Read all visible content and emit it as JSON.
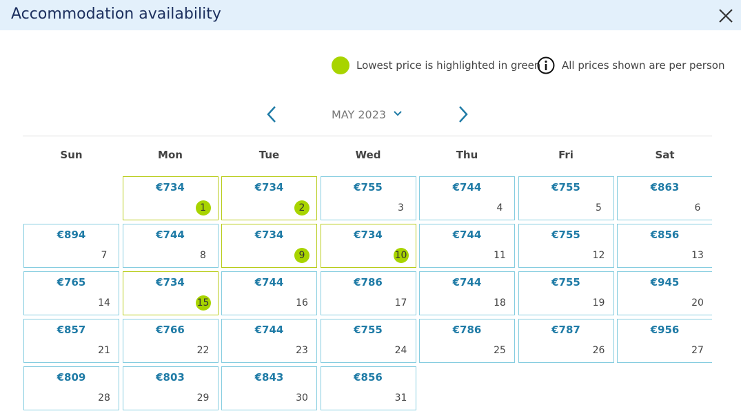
{
  "header": {
    "title": "Accommodation availability"
  },
  "legend": {
    "lowest": "Lowest price is highlighted in green",
    "info": "All prices shown are per person"
  },
  "calendar": {
    "month": "MAY 2023",
    "weekdays": [
      "Sun",
      "Mon",
      "Tue",
      "Wed",
      "Thu",
      "Fri",
      "Sat"
    ],
    "weeks": [
      [
        null,
        {
          "price": "€734",
          "day": 1,
          "lowest": true
        },
        {
          "price": "€734",
          "day": 2,
          "lowest": true
        },
        {
          "price": "€755",
          "day": 3
        },
        {
          "price": "€744",
          "day": 4
        },
        {
          "price": "€755",
          "day": 5
        },
        {
          "price": "€863",
          "day": 6
        }
      ],
      [
        {
          "price": "€894",
          "day": 7
        },
        {
          "price": "€744",
          "day": 8
        },
        {
          "price": "€734",
          "day": 9,
          "lowest": true
        },
        {
          "price": "€734",
          "day": 10,
          "lowest": true
        },
        {
          "price": "€744",
          "day": 11
        },
        {
          "price": "€755",
          "day": 12
        },
        {
          "price": "€856",
          "day": 13
        }
      ],
      [
        {
          "price": "€765",
          "day": 14
        },
        {
          "price": "€734",
          "day": 15,
          "lowest": true
        },
        {
          "price": "€744",
          "day": 16
        },
        {
          "price": "€786",
          "day": 17
        },
        {
          "price": "€744",
          "day": 18
        },
        {
          "price": "€755",
          "day": 19
        },
        {
          "price": "€945",
          "day": 20
        }
      ],
      [
        {
          "price": "€857",
          "day": 21
        },
        {
          "price": "€766",
          "day": 22
        },
        {
          "price": "€744",
          "day": 23
        },
        {
          "price": "€755",
          "day": 24
        },
        {
          "price": "€786",
          "day": 25
        },
        {
          "price": "€787",
          "day": 26
        },
        {
          "price": "€956",
          "day": 27
        }
      ],
      [
        {
          "price": "€809",
          "day": 28
        },
        {
          "price": "€803",
          "day": 29
        },
        {
          "price": "€843",
          "day": 30
        },
        {
          "price": "€856",
          "day": 31
        }
      ]
    ]
  }
}
